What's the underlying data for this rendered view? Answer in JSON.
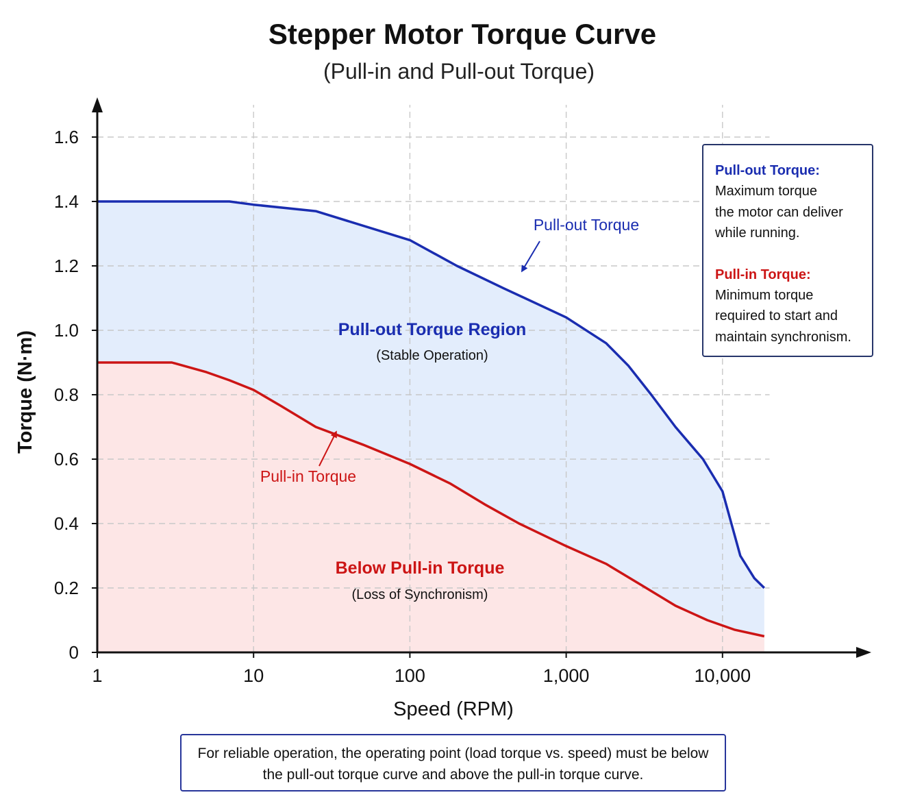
{
  "chart_data": {
    "type": "area",
    "title": "Stepper Motor Torque Curve",
    "subtitle": "(Pull-in and Pull-out Torque)",
    "xlabel": "Speed (RPM)",
    "ylabel": "Torque (N·m)",
    "x_scale": "log",
    "xlim": [
      1,
      20000
    ],
    "ylim": [
      0,
      1.7
    ],
    "x_ticks": [
      1,
      10,
      100,
      1000,
      10000
    ],
    "x_tick_labels": [
      "1",
      "10",
      "100",
      "1,000",
      "10,000"
    ],
    "y_ticks": [
      0,
      0.2,
      0.4,
      0.6,
      0.8,
      1.0,
      1.2,
      1.4,
      1.6
    ],
    "y_tick_labels": [
      "0",
      "0.2",
      "0.4",
      "0.6",
      "0.8",
      "1.0",
      "1.2",
      "1.4",
      "1.6"
    ],
    "grid": true,
    "series": [
      {
        "name": "Pull-out Torque",
        "color": "#1a2db0",
        "fill": "#e3edfc",
        "x": [
          1,
          7,
          10,
          25,
          100,
          200,
          400,
          1000,
          1800,
          2500,
          3500,
          5000,
          7500,
          10000,
          13000,
          16000,
          18500
        ],
        "y": [
          1.4,
          1.4,
          1.39,
          1.37,
          1.28,
          1.2,
          1.13,
          1.04,
          0.96,
          0.89,
          0.8,
          0.7,
          0.6,
          0.5,
          0.3,
          0.23,
          0.2
        ]
      },
      {
        "name": "Pull-in Torque",
        "color": "#cc1515",
        "fill": "#fde6e6",
        "x": [
          1,
          3,
          5,
          7,
          10,
          15,
          25,
          50,
          100,
          180,
          300,
          500,
          1000,
          1800,
          3000,
          5000,
          8000,
          12000,
          18500
        ],
        "y": [
          0.9,
          0.9,
          0.87,
          0.845,
          0.815,
          0.765,
          0.7,
          0.645,
          0.585,
          0.525,
          0.46,
          0.4,
          0.33,
          0.275,
          0.21,
          0.145,
          0.1,
          0.07,
          0.05
        ]
      }
    ],
    "annotations": {
      "pull_out_label": "Pull-out Torque",
      "pull_in_label": "Pull-in Torque",
      "region_top": "Pull-out Torque Region",
      "region_top_sub": "(Stable Operation)",
      "region_bottom": "Below Pull-in Torque",
      "region_bottom_sub": "(Loss of Synchronism)"
    }
  },
  "legend": {
    "pull_out_head": "Pull-out Torque:",
    "pull_out_text": "Maximum torque\nthe motor can deliver\nwhile running.",
    "pull_in_head": "Pull-in Torque:",
    "pull_in_text": "Minimum torque\nrequired to start and\nmaintain synchronism."
  },
  "note": "For reliable operation, the operating point (load torque vs. speed) must be below the pull-out torque curve and above the pull-in torque curve.",
  "colors": {
    "pull_out": "#1a2db0",
    "pull_in": "#cc1515",
    "region_blue": "#e3edfc",
    "region_red": "#fde6e6"
  }
}
